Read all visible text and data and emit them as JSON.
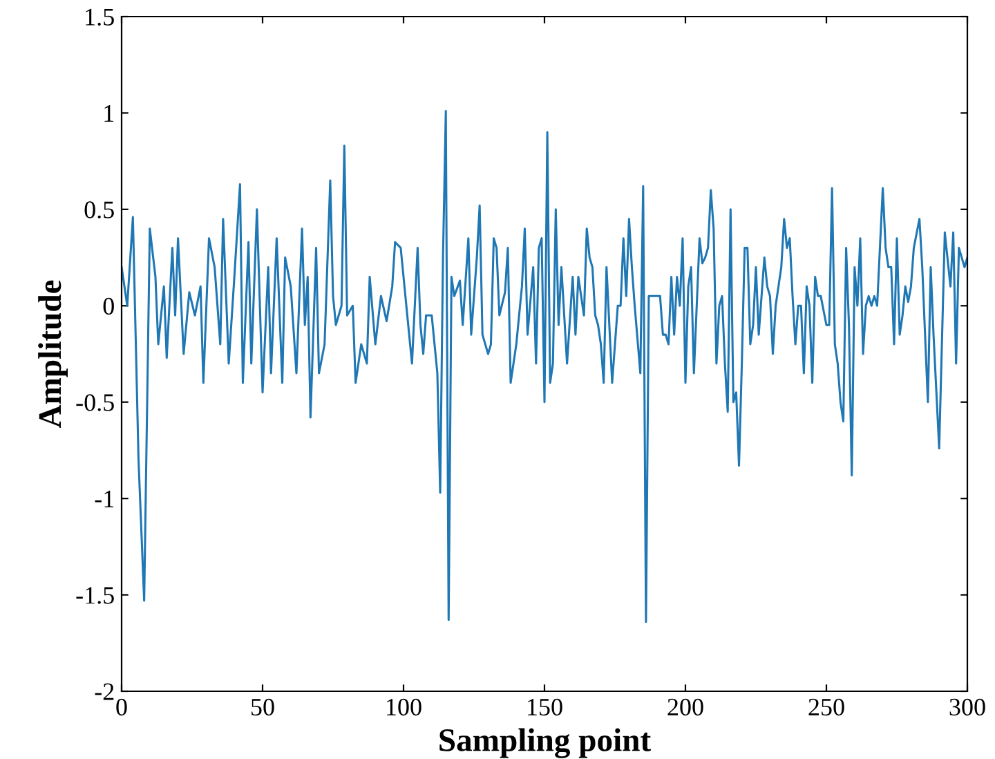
{
  "chart_data": {
    "type": "line",
    "xlabel": "Sampling point",
    "ylabel": "Amplitude",
    "x": [
      0,
      2,
      4,
      6,
      8,
      10,
      12,
      13,
      15,
      16,
      18,
      19,
      20,
      22,
      24,
      26,
      28,
      29,
      31,
      33,
      35,
      36,
      38,
      40,
      42,
      43,
      45,
      46,
      48,
      50,
      52,
      53,
      55,
      57,
      58,
      60,
      62,
      64,
      65,
      66,
      67,
      69,
      70,
      72,
      74,
      75,
      76,
      78,
      79,
      80,
      82,
      83,
      85,
      87,
      88,
      90,
      92,
      94,
      96,
      97,
      99,
      101,
      103,
      105,
      106,
      107,
      108,
      110,
      112,
      113,
      114,
      115,
      116,
      117,
      118,
      120,
      121,
      123,
      124,
      126,
      127,
      128,
      130,
      131,
      132,
      133,
      134,
      136,
      137,
      138,
      140,
      142,
      143,
      144,
      146,
      147,
      148,
      149,
      150,
      151,
      152,
      153,
      154,
      155,
      156,
      158,
      160,
      161,
      162,
      164,
      165,
      166,
      167,
      168,
      169,
      170,
      171,
      172,
      173,
      174,
      176,
      177,
      178,
      179,
      180,
      181,
      182,
      184,
      185,
      186,
      187,
      189,
      191,
      192,
      193,
      194,
      195,
      196,
      197,
      198,
      199,
      200,
      201,
      202,
      203,
      205,
      206,
      207,
      208,
      209,
      210,
      211,
      212,
      213,
      214,
      215,
      216,
      217,
      218,
      219,
      220,
      221,
      222,
      223,
      224,
      225,
      226,
      228,
      229,
      230,
      231,
      232,
      233,
      234,
      235,
      236,
      237,
      238,
      239,
      240,
      241,
      242,
      243,
      244,
      245,
      246,
      247,
      248,
      250,
      251,
      252,
      253,
      254,
      255,
      256,
      257,
      258,
      259,
      260,
      261,
      262,
      263,
      264,
      265,
      266,
      267,
      268,
      270,
      271,
      272,
      273,
      274,
      275,
      276,
      277,
      278,
      279,
      280,
      281,
      283,
      284,
      286,
      287,
      288,
      290,
      292,
      294,
      295,
      296,
      297,
      299,
      300
    ],
    "series": [
      {
        "color": "#1f77b4",
        "values": [
          0.2,
          0,
          0.46,
          -0.8,
          -1.53,
          0.4,
          0.15,
          -0.2,
          0.1,
          -0.27,
          0.3,
          -0.05,
          0.35,
          -0.25,
          0.07,
          -0.05,
          0.1,
          -0.4,
          0.35,
          0.2,
          -0.2,
          0.45,
          -0.3,
          0.15,
          0.63,
          -0.4,
          0.33,
          -0.3,
          0.5,
          -0.45,
          0.2,
          -0.35,
          0.35,
          -0.4,
          0.25,
          0.1,
          -0.35,
          0.4,
          -0.1,
          0.15,
          -0.58,
          0.3,
          -0.35,
          -0.2,
          0.65,
          0.05,
          -0.1,
          0,
          0.83,
          -0.05,
          0,
          -0.4,
          -0.2,
          -0.3,
          0.15,
          -0.2,
          0.05,
          -0.08,
          0.1,
          0.33,
          0.3,
          0,
          -0.3,
          0.3,
          -0.1,
          -0.25,
          -0.05,
          -0.05,
          -0.35,
          -0.97,
          0.25,
          1.01,
          -1.63,
          0.15,
          0.05,
          0.13,
          -0.1,
          0.35,
          -0.15,
          0.25,
          0.52,
          -0.15,
          -0.25,
          -0.2,
          0.35,
          0.3,
          -0.05,
          0.07,
          0.3,
          -0.4,
          -0.2,
          0.1,
          0.4,
          -0.15,
          0.2,
          -0.3,
          0.3,
          0.35,
          -0.5,
          0.9,
          -0.4,
          -0.3,
          0.5,
          -0.1,
          0.2,
          -0.3,
          0.15,
          -0.15,
          0.15,
          -0.05,
          0.4,
          0.25,
          0.2,
          -0.05,
          -0.1,
          -0.2,
          -0.4,
          0.2,
          -0.1,
          -0.4,
          0,
          0,
          0.35,
          0.05,
          0.45,
          0.2,
          0,
          -0.35,
          0.62,
          -1.64,
          0.05,
          0.05,
          0.05,
          -0.15,
          -0.15,
          -0.2,
          0.15,
          -0.15,
          0.15,
          0,
          0.35,
          -0.4,
          0.1,
          0.2,
          -0.35,
          0.35,
          0.22,
          0.25,
          0.3,
          0.6,
          0.4,
          -0.3,
          0,
          0.05,
          -0.3,
          -0.55,
          0.5,
          -0.5,
          -0.45,
          -0.83,
          -0.3,
          0.3,
          0.3,
          -0.2,
          -0.1,
          0.2,
          -0.15,
          0.25,
          0.1,
          0.05,
          -0.25,
          0,
          0.1,
          0.2,
          0.45,
          0.3,
          0.35,
          0.05,
          -0.2,
          0,
          0,
          -0.35,
          0.1,
          0,
          -0.4,
          0.15,
          0.05,
          0.05,
          -0.1,
          -0.1,
          0.61,
          -0.2,
          -0.3,
          -0.5,
          -0.6,
          0.3,
          -0.1,
          -0.88,
          0.2,
          0,
          0.35,
          -0.25,
          0,
          0.05,
          0,
          0.05,
          0,
          0.61,
          0.3,
          0.2,
          0.2,
          -0.2,
          0.35,
          -0.15,
          -0.05,
          0.1,
          0.02,
          0.1,
          0.3,
          0.45,
          0.2,
          -0.5,
          0.2,
          -0.15,
          -0.74,
          0.38,
          0.1,
          0.38,
          -0.3,
          0.3,
          0.2,
          0.25
        ]
      }
    ],
    "xlim": [
      0,
      300
    ],
    "xticks": [
      0,
      50,
      100,
      150,
      200,
      250,
      300
    ],
    "ylim": [
      -2,
      1.5
    ],
    "yticks": [
      -2,
      -1.5,
      -1,
      -0.5,
      0,
      0.5,
      1,
      1.5
    ],
    "grid": false,
    "legend": false,
    "marker": "none",
    "line_style": "solid"
  }
}
